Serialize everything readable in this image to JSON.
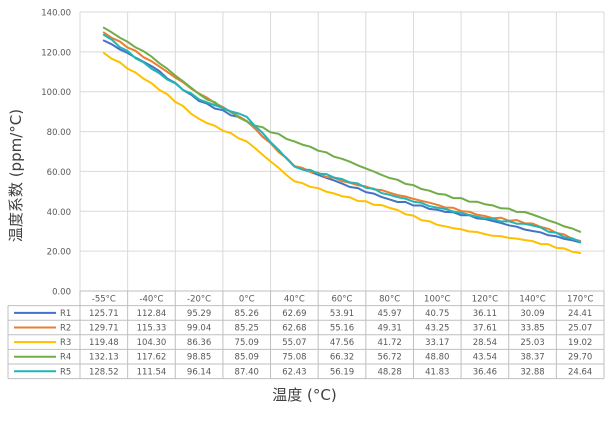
{
  "chart_data": {
    "type": "line",
    "xlabel": "温度 (°C)",
    "ylabel": "温度系数 (ppm/°C)",
    "ylim": [
      0,
      140
    ],
    "y_ticks": [
      "0.00",
      "20.00",
      "40.00",
      "60.00",
      "80.00",
      "100.00",
      "120.00",
      "140.00"
    ],
    "grid": true,
    "categories": [
      "-55°C",
      "-40°C",
      "-20°C",
      "0°C",
      "40°C",
      "60°C",
      "80°C",
      "100°C",
      "120°C",
      "140°C",
      "170°C"
    ],
    "series": [
      {
        "name": "R1",
        "color": "#4472C4",
        "values": [
          125.71,
          112.84,
          95.29,
          85.26,
          62.69,
          53.91,
          45.97,
          40.75,
          36.11,
          30.09,
          24.41
        ]
      },
      {
        "name": "R2",
        "color": "#ED7D31",
        "values": [
          129.71,
          115.33,
          99.04,
          85.25,
          62.68,
          55.16,
          49.31,
          43.25,
          37.61,
          33.85,
          25.07
        ]
      },
      {
        "name": "R3",
        "color": "#FFC000",
        "values": [
          119.48,
          104.3,
          86.36,
          75.09,
          55.07,
          47.56,
          41.72,
          33.17,
          28.54,
          25.03,
          19.02
        ]
      },
      {
        "name": "R4",
        "color": "#70AD47",
        "values": [
          132.13,
          117.62,
          98.85,
          85.09,
          75.08,
          66.32,
          56.72,
          48.8,
          43.54,
          38.37,
          29.7
        ]
      },
      {
        "name": "R5",
        "color": "#21B6B5",
        "values": [
          128.52,
          111.54,
          96.14,
          87.4,
          62.43,
          56.19,
          48.28,
          41.83,
          36.46,
          32.88,
          24.64
        ]
      }
    ],
    "table_values": [
      [
        "125.71",
        "112.84",
        "95.29",
        "85.26",
        "62.69",
        "53.91",
        "45.97",
        "40.75",
        "36.11",
        "30.09",
        "24.41"
      ],
      [
        "129.71",
        "115.33",
        "99.04",
        "85.25",
        "62.68",
        "55.16",
        "49.31",
        "43.25",
        "37.61",
        "33.85",
        "25.07"
      ],
      [
        "119.48",
        "104.30",
        "86.36",
        "75.09",
        "55.07",
        "47.56",
        "41.72",
        "33.17",
        "28.54",
        "25.03",
        "19.02"
      ],
      [
        "132.13",
        "117.62",
        "98.85",
        "85.09",
        "75.08",
        "66.32",
        "56.72",
        "48.80",
        "43.54",
        "38.37",
        "29.70"
      ],
      [
        "128.52",
        "111.54",
        "96.14",
        "87.40",
        "62.43",
        "56.19",
        "48.28",
        "41.83",
        "36.46",
        "32.88",
        "24.64"
      ]
    ]
  }
}
